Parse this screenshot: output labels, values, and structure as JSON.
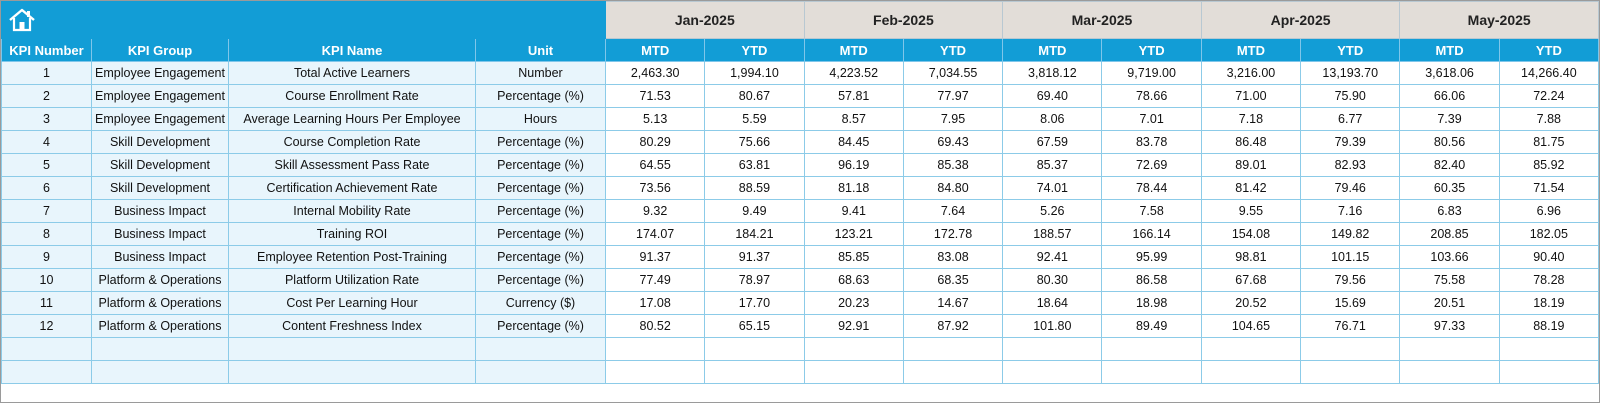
{
  "header": {
    "months": [
      "Jan-2025",
      "Feb-2025",
      "Mar-2025",
      "Apr-2025",
      "May-2025"
    ],
    "columns": [
      "KPI Number",
      "KPI Group",
      "KPI Name",
      "Unit"
    ],
    "sub": [
      "MTD",
      "YTD"
    ]
  },
  "rows": [
    [
      1,
      "Employee Engagement",
      "Total Active Learners",
      "Number",
      "2,463.30",
      "1,994.10",
      "4,223.52",
      "7,034.55",
      "3,818.12",
      "9,719.00",
      "3,216.00",
      "13,193.70",
      "3,618.06",
      "14,266.40"
    ],
    [
      2,
      "Employee Engagement",
      "Course Enrollment Rate",
      "Percentage (%)",
      "71.53",
      "80.67",
      "57.81",
      "77.97",
      "69.40",
      "78.66",
      "71.00",
      "75.90",
      "66.06",
      "72.24"
    ],
    [
      3,
      "Employee Engagement",
      "Average Learning Hours Per Employee",
      "Hours",
      "5.13",
      "5.59",
      "8.57",
      "7.95",
      "8.06",
      "7.01",
      "7.18",
      "6.77",
      "7.39",
      "7.88"
    ],
    [
      4,
      "Skill Development",
      "Course Completion Rate",
      "Percentage (%)",
      "80.29",
      "75.66",
      "84.45",
      "69.43",
      "67.59",
      "83.78",
      "86.48",
      "79.39",
      "80.56",
      "81.75"
    ],
    [
      5,
      "Skill Development",
      "Skill Assessment Pass Rate",
      "Percentage (%)",
      "64.55",
      "63.81",
      "96.19",
      "85.38",
      "85.37",
      "72.69",
      "89.01",
      "82.93",
      "82.40",
      "85.92"
    ],
    [
      6,
      "Skill Development",
      "Certification Achievement Rate",
      "Percentage (%)",
      "73.56",
      "88.59",
      "81.18",
      "84.80",
      "74.01",
      "78.44",
      "81.42",
      "79.46",
      "60.35",
      "71.54"
    ],
    [
      7,
      "Business Impact",
      "Internal Mobility Rate",
      "Percentage (%)",
      "9.32",
      "9.49",
      "9.41",
      "7.64",
      "5.26",
      "7.58",
      "9.55",
      "7.16",
      "6.83",
      "6.96"
    ],
    [
      8,
      "Business Impact",
      "Training ROI",
      "Percentage (%)",
      "174.07",
      "184.21",
      "123.21",
      "172.78",
      "188.57",
      "166.14",
      "154.08",
      "149.82",
      "208.85",
      "182.05"
    ],
    [
      9,
      "Business Impact",
      "Employee Retention Post-Training",
      "Percentage (%)",
      "91.37",
      "91.37",
      "85.85",
      "83.08",
      "92.41",
      "95.99",
      "98.81",
      "101.15",
      "103.66",
      "90.40"
    ],
    [
      10,
      "Platform & Operations",
      "Platform Utilization Rate",
      "Percentage (%)",
      "77.49",
      "78.97",
      "68.63",
      "68.35",
      "80.30",
      "86.58",
      "67.68",
      "79.56",
      "75.58",
      "78.28"
    ],
    [
      11,
      "Platform & Operations",
      "Cost Per Learning Hour",
      "Currency ($)",
      "17.08",
      "17.70",
      "20.23",
      "14.67",
      "18.64",
      "18.98",
      "20.52",
      "15.69",
      "20.51",
      "18.19"
    ],
    [
      12,
      "Platform & Operations",
      "Content Freshness Index",
      "Percentage (%)",
      "80.52",
      "65.15",
      "92.91",
      "87.92",
      "101.80",
      "89.49",
      "104.65",
      "76.71",
      "97.33",
      "88.19"
    ]
  ]
}
